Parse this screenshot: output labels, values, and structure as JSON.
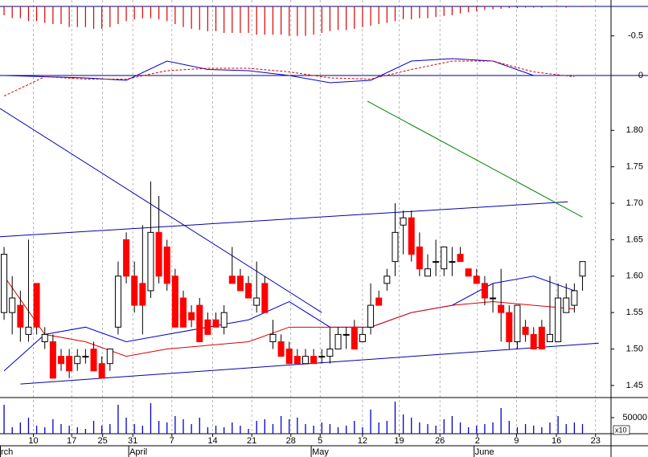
{
  "chart_data": {
    "type": "candlestick",
    "xlim": [
      -0.5,
      74.5
    ],
    "xticks": [
      {
        "value": 3.6,
        "label": "10"
      },
      {
        "value": 8.3,
        "label": "17"
      },
      {
        "value": 12.1,
        "label": "25"
      },
      {
        "value": 15.8,
        "label": "31"
      },
      {
        "value": 20.6,
        "label": "7"
      },
      {
        "value": 25.6,
        "label": "14"
      },
      {
        "value": 30.4,
        "label": "21"
      },
      {
        "value": 35.2,
        "label": "28"
      },
      {
        "value": 38.8,
        "label": "5"
      },
      {
        "value": 44.0,
        "label": "12"
      },
      {
        "value": 48.5,
        "label": "19"
      },
      {
        "value": 53.5,
        "label": "26"
      },
      {
        "value": 58.1,
        "label": "2"
      },
      {
        "value": 62.9,
        "label": "9"
      },
      {
        "value": 67.8,
        "label": "16"
      },
      {
        "value": 72.6,
        "label": "23"
      }
    ],
    "month_ticks": [
      {
        "value": -0.5,
        "label": "rch"
      },
      {
        "value": 15.3,
        "label": "April"
      },
      {
        "value": 37.7,
        "label": "May"
      },
      {
        "value": 57.7,
        "label": "June"
      }
    ],
    "grid": true,
    "ylim": [
      1.44,
      1.84
    ],
    "yticks": [
      1.45,
      {
        "value": 1.5,
        "label": "1.50"
      },
      1.55,
      {
        "value": 1.6,
        "label": "1.60"
      },
      1.65,
      {
        "value": 1.7,
        "label": "1.70"
      },
      1.75,
      {
        "value": 1.8,
        "label": "1.80"
      }
    ],
    "up_color": "#ffffff",
    "down_color": "#ff0000",
    "open": [
      1.55,
      1.55,
      1.56,
      1.52,
      1.59,
      1.51,
      1.51,
      1.49,
      1.49,
      1.48,
      1.49,
      1.5,
      1.48,
      1.48,
      1.53,
      1.65,
      1.6,
      1.59,
      1.58,
      1.66,
      1.64,
      1.6,
      1.57,
      1.55,
      1.56,
      1.54,
      1.54,
      1.53,
      1.6,
      1.6,
      1.59,
      1.56,
      1.59,
      1.51,
      1.51,
      1.5,
      1.49,
      1.48,
      1.49,
      1.49,
      1.49,
      1.5,
      1.52,
      1.53,
      1.51,
      1.53,
      1.57,
      1.59,
      1.62,
      1.67,
      1.68,
      1.64,
      1.6,
      1.62,
      1.61,
      1.62,
      1.63,
      1.61,
      1.6,
      1.59,
      1.57,
      1.56,
      1.55,
      1.51,
      1.53,
      1.52,
      1.53,
      1.51,
      1.51,
      1.55,
      1.56,
      1.6
    ],
    "high": [
      1.64,
      1.6,
      1.58,
      1.65,
      1.59,
      1.53,
      1.52,
      1.5,
      1.5,
      1.5,
      1.5,
      1.51,
      1.49,
      1.5,
      1.62,
      1.66,
      1.62,
      1.67,
      1.73,
      1.71,
      1.65,
      1.61,
      1.58,
      1.56,
      1.57,
      1.55,
      1.55,
      1.56,
      1.64,
      1.61,
      1.6,
      1.62,
      1.6,
      1.54,
      1.52,
      1.51,
      1.5,
      1.5,
      1.5,
      1.5,
      1.53,
      1.53,
      1.53,
      1.54,
      1.53,
      1.59,
      1.58,
      1.61,
      1.7,
      1.69,
      1.69,
      1.66,
      1.63,
      1.65,
      1.64,
      1.64,
      1.64,
      1.61,
      1.61,
      1.6,
      1.59,
      1.61,
      1.56,
      1.56,
      1.54,
      1.53,
      1.54,
      1.6,
      1.59,
      1.59,
      1.59,
      1.62
    ],
    "low": [
      1.54,
      1.52,
      1.51,
      1.51,
      1.52,
      1.5,
      1.46,
      1.47,
      1.46,
      1.47,
      1.48,
      1.47,
      1.46,
      1.47,
      1.52,
      1.59,
      1.55,
      1.52,
      1.57,
      1.59,
      1.58,
      1.53,
      1.53,
      1.53,
      1.51,
      1.52,
      1.53,
      1.52,
      1.59,
      1.58,
      1.57,
      1.55,
      1.55,
      1.5,
      1.49,
      1.48,
      1.48,
      1.48,
      1.48,
      1.48,
      1.48,
      1.5,
      1.5,
      1.5,
      1.51,
      1.52,
      1.56,
      1.58,
      1.6,
      1.63,
      1.62,
      1.6,
      1.6,
      1.6,
      1.6,
      1.6,
      1.62,
      1.6,
      1.59,
      1.56,
      1.55,
      1.51,
      1.5,
      1.5,
      1.51,
      1.5,
      1.5,
      1.51,
      1.51,
      1.55,
      1.55,
      1.58
    ],
    "close": [
      1.63,
      1.57,
      1.53,
      1.53,
      1.53,
      1.52,
      1.46,
      1.48,
      1.47,
      1.49,
      1.49,
      1.47,
      1.46,
      1.5,
      1.6,
      1.6,
      1.56,
      1.56,
      1.66,
      1.6,
      1.59,
      1.53,
      1.53,
      1.54,
      1.51,
      1.52,
      1.53,
      1.55,
      1.59,
      1.58,
      1.57,
      1.57,
      1.55,
      1.52,
      1.49,
      1.48,
      1.48,
      1.49,
      1.48,
      1.49,
      1.5,
      1.52,
      1.52,
      1.5,
      1.52,
      1.56,
      1.56,
      1.6,
      1.66,
      1.68,
      1.63,
      1.61,
      1.61,
      1.62,
      1.64,
      1.62,
      1.62,
      1.6,
      1.59,
      1.57,
      1.57,
      1.55,
      1.51,
      1.56,
      1.52,
      1.5,
      1.5,
      1.52,
      1.57,
      1.57,
      1.58,
      1.62
    ],
    "moving_averages": [
      {
        "color": "#0000cc",
        "x": [
          0,
          5,
          10,
          15,
          20,
          25,
          30,
          35,
          40,
          45,
          50,
          55,
          60,
          65,
          70
        ],
        "values": [
          1.47,
          1.52,
          1.53,
          1.51,
          1.52,
          1.53,
          1.54,
          1.565,
          1.53,
          1.53,
          1.55,
          1.56,
          1.59,
          1.6,
          1.58
        ]
      },
      {
        "color": "#dd0000",
        "x": [
          0,
          5,
          10,
          15,
          20,
          25,
          30,
          35,
          40,
          45,
          50,
          55,
          60,
          65,
          70
        ],
        "values": [
          1.6,
          1.52,
          1.51,
          1.49,
          1.5,
          1.505,
          1.51,
          1.53,
          1.53,
          1.53,
          1.55,
          1.56,
          1.565,
          1.56,
          1.555
        ]
      }
    ],
    "trendlines": [
      {
        "color": "#0000aa",
        "x": [
          -0.5,
          39
        ],
        "values": [
          1.83,
          1.55
        ]
      },
      {
        "color": "#0000aa",
        "x": [
          -0.5,
          69.2
        ],
        "values": [
          1.654,
          1.702
        ]
      },
      {
        "color": "#0000aa",
        "x": [
          2,
          73
        ],
        "values": [
          1.452,
          1.508
        ]
      },
      {
        "color": "#008800",
        "x": [
          44.6,
          71
        ],
        "values": [
          1.84,
          1.681
        ]
      }
    ],
    "histogram": {
      "color": "#dd0000",
      "ylim": [
        -0.6,
        0
      ],
      "yticks": [
        -0.5
      ],
      "values": [
        -0.15,
        -0.2,
        -0.2,
        -0.25,
        -0.25,
        -0.28,
        -0.3,
        -0.3,
        -0.35,
        -0.35,
        -0.35,
        -0.38,
        -0.38,
        -0.35,
        -0.3,
        -0.25,
        -0.22,
        -0.2,
        -0.2,
        -0.22,
        -0.25,
        -0.3,
        -0.35,
        -0.38,
        -0.4,
        -0.42,
        -0.42,
        -0.45,
        -0.45,
        -0.45,
        -0.45,
        -0.48,
        -0.48,
        -0.48,
        -0.48,
        -0.5,
        -0.5,
        -0.5,
        -0.48,
        -0.45,
        -0.42,
        -0.4,
        -0.4,
        -0.38,
        -0.35,
        -0.33,
        -0.3,
        -0.28,
        -0.25,
        -0.22,
        -0.22,
        -0.2,
        -0.2,
        -0.18,
        -0.16,
        -0.15,
        -0.12,
        -0.1,
        -0.08,
        -0.06,
        -0.05,
        -0.04,
        -0.03,
        -0.03,
        -0.02,
        -0.02,
        -0.02,
        -0.01,
        -0.01,
        -0.02,
        0,
        -0.01
      ]
    },
    "macd": {
      "ylim": [
        -0.2,
        0.2
      ],
      "yticks": [
        0
      ],
      "series": [
        {
          "color": "#0000cc",
          "x": [
            0,
            5,
            10,
            15,
            20,
            25,
            30,
            35,
            40,
            45,
            50,
            55,
            60,
            65,
            70
          ],
          "values": [
            0.0,
            -0.01,
            -0.02,
            -0.04,
            0.12,
            0.05,
            0.04,
            0.0,
            -0.06,
            -0.04,
            0.12,
            0.14,
            0.12,
            0.0,
            0.0
          ]
        },
        {
          "color": "#dd0000",
          "dashed": true,
          "x": [
            0,
            5,
            10,
            15,
            20,
            25,
            30,
            35,
            40,
            45,
            50,
            55,
            60,
            65,
            70
          ],
          "values": [
            -0.17,
            -0.01,
            -0.03,
            -0.03,
            0.04,
            0.06,
            0.06,
            0.03,
            -0.02,
            -0.03,
            0.05,
            0.12,
            0.12,
            0.03,
            -0.01
          ]
        }
      ]
    },
    "volume": {
      "color": "#0000cc",
      "ylim": [
        0,
        100000
      ],
      "yticks": [
        50000
      ],
      "multiplier_label": "x10",
      "values": [
        90000,
        20000,
        35000,
        50000,
        25000,
        20000,
        45000,
        30000,
        25000,
        20000,
        15000,
        40000,
        25000,
        30000,
        90000,
        50000,
        30000,
        25000,
        95000,
        40000,
        35000,
        55000,
        45000,
        30000,
        50000,
        20000,
        25000,
        20000,
        35000,
        25000,
        15000,
        40000,
        45000,
        30000,
        55000,
        45000,
        50000,
        30000,
        25000,
        35000,
        30000,
        20000,
        25000,
        40000,
        20000,
        75000,
        35000,
        40000,
        100000,
        60000,
        50000,
        35000,
        30000,
        25000,
        45000,
        55000,
        35000,
        20000,
        25000,
        30000,
        35000,
        80000,
        40000,
        20000,
        30000,
        25000,
        20000,
        35000,
        55000,
        30000,
        35000,
        30000
      ]
    }
  }
}
